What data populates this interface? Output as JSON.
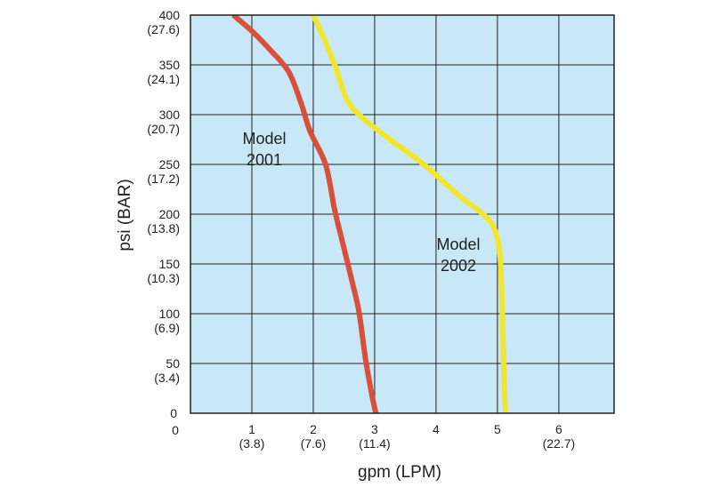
{
  "chart_data": {
    "type": "line",
    "xlabel": "gpm (LPM)",
    "ylabel": "psi (BAR)",
    "xlim": [
      0,
      6.9
    ],
    "ylim": [
      0,
      400
    ],
    "grid": true,
    "background_color": "#c8e8f8",
    "grid_color": "#231f20",
    "x_ticks": [
      {
        "value": 0,
        "primary": "0",
        "secondary": ""
      },
      {
        "value": 1,
        "primary": "1",
        "secondary": "(3.8)"
      },
      {
        "value": 2,
        "primary": "2",
        "secondary": "(7.6)"
      },
      {
        "value": 3,
        "primary": "3",
        "secondary": "(11.4)"
      },
      {
        "value": 4,
        "primary": "4",
        "secondary": ""
      },
      {
        "value": 5,
        "primary": "5",
        "secondary": ""
      },
      {
        "value": 6,
        "primary": "6",
        "secondary": "(22.7)"
      }
    ],
    "y_ticks": [
      {
        "value": 0,
        "primary": "0",
        "secondary": ""
      },
      {
        "value": 50,
        "primary": "50",
        "secondary": "(3.4)"
      },
      {
        "value": 100,
        "primary": "100",
        "secondary": "(6.9)"
      },
      {
        "value": 150,
        "primary": "150",
        "secondary": "(10.3)"
      },
      {
        "value": 200,
        "primary": "200",
        "secondary": "(13.8)"
      },
      {
        "value": 250,
        "primary": "250",
        "secondary": "(17.2)"
      },
      {
        "value": 300,
        "primary": "300",
        "secondary": "(20.7)"
      },
      {
        "value": 350,
        "primary": "350",
        "secondary": "(24.1)"
      },
      {
        "value": 400,
        "primary": "400",
        "secondary": "(27.6)"
      }
    ],
    "series": [
      {
        "name": "Model 2001",
        "label_lines": [
          "Model",
          "2001"
        ],
        "color": "#d9503a",
        "points": [
          [
            0.7,
            400
          ],
          [
            1.0,
            384
          ],
          [
            1.3,
            365
          ],
          [
            1.6,
            343
          ],
          [
            1.8,
            312
          ],
          [
            1.95,
            283
          ],
          [
            2.2,
            250
          ],
          [
            2.35,
            204
          ],
          [
            2.5,
            166
          ],
          [
            2.65,
            128
          ],
          [
            2.75,
            100
          ],
          [
            2.85,
            55
          ],
          [
            2.95,
            20
          ],
          [
            3.02,
            0
          ]
        ]
      },
      {
        "name": "Model 2002",
        "label_lines": [
          "Model",
          "2002"
        ],
        "color": "#f0e62e",
        "points": [
          [
            2.0,
            400
          ],
          [
            2.15,
            380
          ],
          [
            2.35,
            350
          ],
          [
            2.55,
            315
          ],
          [
            2.8,
            297
          ],
          [
            3.25,
            275
          ],
          [
            3.8,
            250
          ],
          [
            4.35,
            220
          ],
          [
            4.85,
            195
          ],
          [
            5.0,
            175
          ],
          [
            5.05,
            150
          ],
          [
            5.08,
            100
          ],
          [
            5.1,
            50
          ],
          [
            5.13,
            0
          ]
        ]
      }
    ]
  }
}
